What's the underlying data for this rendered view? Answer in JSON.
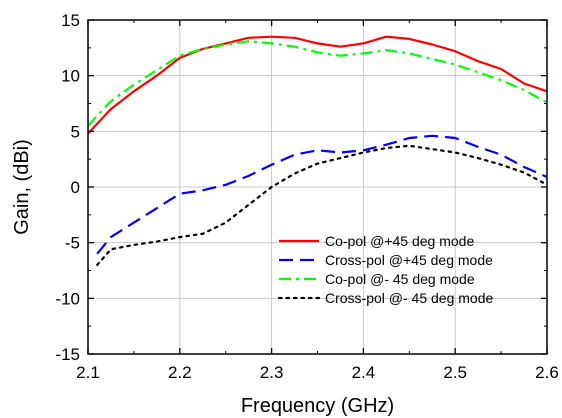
{
  "chart_data": {
    "type": "line",
    "title": "",
    "xlabel": "Frequency (GHz)",
    "ylabel": "Gain, (dBi)",
    "xlim": [
      2.1,
      2.6
    ],
    "ylim": [
      -15,
      15
    ],
    "xticks": [
      2.1,
      2.2,
      2.3,
      2.4,
      2.5,
      2.6
    ],
    "yticks": [
      -15,
      -10,
      -5,
      0,
      5,
      10,
      15
    ],
    "xtick_labels": [
      "2.1",
      "2.2",
      "2.3",
      "2.4",
      "2.5",
      "2.6"
    ],
    "ytick_labels": [
      "-15",
      "-10",
      "-5",
      "0",
      "5",
      "10",
      "15"
    ],
    "grid": true,
    "legend_position": "bottom-right",
    "series": [
      {
        "name": "Co-pol @+45 deg mode",
        "color": "#ff0000",
        "dash": "solid",
        "x": [
          2.1,
          2.125,
          2.15,
          2.175,
          2.2,
          2.225,
          2.25,
          2.275,
          2.3,
          2.325,
          2.35,
          2.375,
          2.4,
          2.425,
          2.45,
          2.475,
          2.5,
          2.525,
          2.55,
          2.575,
          2.6
        ],
        "y": [
          4.8,
          7.0,
          8.6,
          10.0,
          11.6,
          12.4,
          12.9,
          13.4,
          13.5,
          13.4,
          12.9,
          12.6,
          12.9,
          13.5,
          13.3,
          12.8,
          12.2,
          11.3,
          10.6,
          9.3,
          8.6
        ]
      },
      {
        "name": "Cross-pol @+45 deg mode",
        "color": "#0000ff",
        "dash": "dashed",
        "x": [
          2.11,
          2.125,
          2.15,
          2.175,
          2.2,
          2.225,
          2.25,
          2.275,
          2.3,
          2.325,
          2.35,
          2.375,
          2.4,
          2.425,
          2.45,
          2.475,
          2.5,
          2.525,
          2.55,
          2.575,
          2.6
        ],
        "y": [
          -6.0,
          -4.5,
          -3.2,
          -1.9,
          -0.6,
          -0.3,
          0.2,
          1.0,
          2.0,
          2.9,
          3.3,
          3.1,
          3.3,
          3.8,
          4.4,
          4.6,
          4.4,
          3.6,
          2.9,
          1.8,
          0.9
        ]
      },
      {
        "name": "Co-pol @- 45 deg mode",
        "color": "#00ff00",
        "dash": "dashdot",
        "x": [
          2.1,
          2.125,
          2.15,
          2.175,
          2.2,
          2.225,
          2.25,
          2.275,
          2.3,
          2.325,
          2.35,
          2.375,
          2.4,
          2.425,
          2.45,
          2.475,
          2.5,
          2.525,
          2.55,
          2.575,
          2.6
        ],
        "y": [
          5.5,
          7.7,
          9.2,
          10.5,
          11.8,
          12.4,
          12.8,
          13.1,
          12.9,
          12.6,
          12.1,
          11.8,
          12.0,
          12.3,
          12.0,
          11.5,
          11.0,
          10.3,
          9.6,
          8.7,
          7.6
        ]
      },
      {
        "name": "Cross-pol @- 45 deg mode",
        "color": "#000000",
        "dash": "dotted",
        "x": [
          2.11,
          2.125,
          2.15,
          2.175,
          2.2,
          2.225,
          2.25,
          2.275,
          2.3,
          2.325,
          2.35,
          2.375,
          2.4,
          2.425,
          2.45,
          2.475,
          2.5,
          2.525,
          2.55,
          2.575,
          2.6
        ],
        "y": [
          -7.0,
          -5.6,
          -5.2,
          -4.9,
          -4.5,
          -4.2,
          -3.2,
          -1.6,
          0.0,
          1.2,
          2.1,
          2.6,
          3.1,
          3.5,
          3.7,
          3.4,
          3.1,
          2.6,
          2.0,
          1.3,
          0.2
        ]
      }
    ]
  }
}
